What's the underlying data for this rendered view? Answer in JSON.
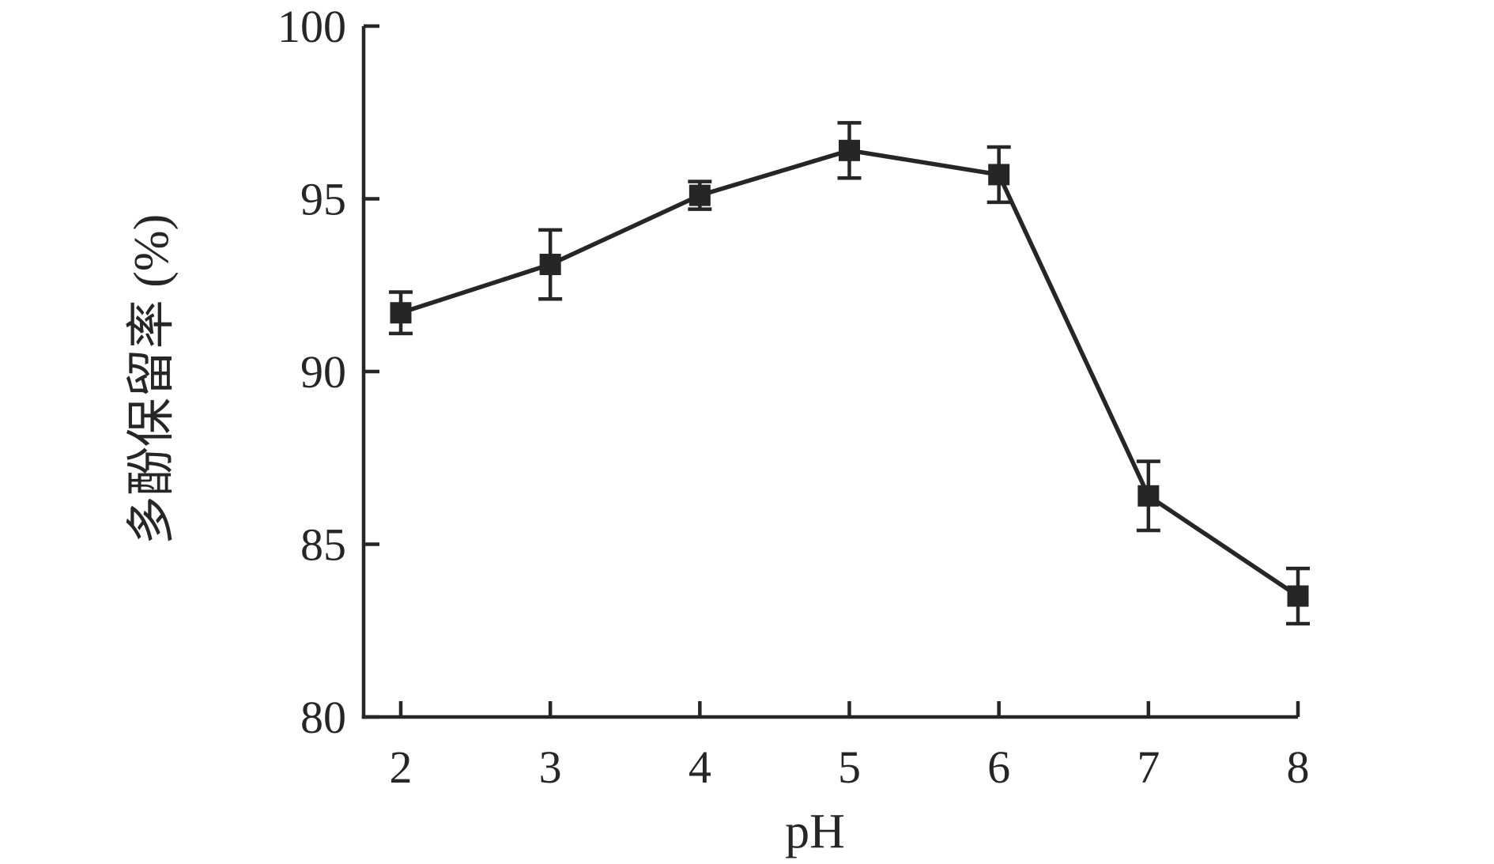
{
  "figure": {
    "background": "#ffffff",
    "ink_color": "#262626"
  },
  "chart_data": {
    "type": "line",
    "title": "",
    "xlabel": "pH",
    "ylabel": "多酚保留率 (%)",
    "x": [
      2,
      3,
      4,
      5,
      6,
      7,
      8
    ],
    "series": [
      {
        "name": "polyphenol-retention",
        "values": [
          91.7,
          93.1,
          95.1,
          96.4,
          95.7,
          86.4,
          83.5
        ],
        "errors": [
          0.6,
          1.0,
          0.4,
          0.8,
          0.8,
          1.0,
          0.8
        ],
        "marker": "square",
        "color": "#262626"
      }
    ],
    "xlim": [
      1.75,
      8.0
    ],
    "ylim": [
      80,
      100
    ],
    "x_ticks": [
      2,
      3,
      4,
      5,
      6,
      7,
      8
    ],
    "y_ticks": [
      80,
      85,
      90,
      95,
      100
    ],
    "grid": false,
    "legend": "none",
    "tick_direction": "in",
    "spines": [
      "left",
      "bottom"
    ]
  }
}
